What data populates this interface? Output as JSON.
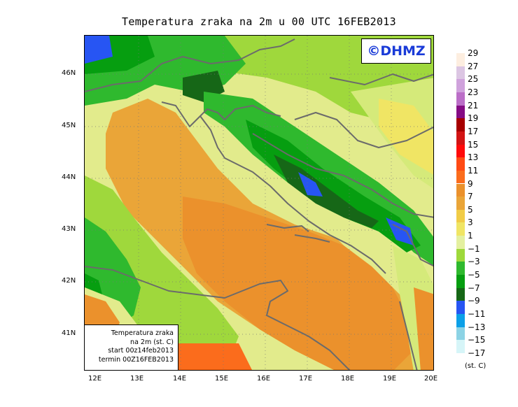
{
  "title": "Temperatura zraka na 2m u 00 UTC 16FEB2013",
  "logo": "©DHMZ",
  "info_box": {
    "line1": "Temperatura zraka",
    "line2": "na 2m (st. C)",
    "line3": "start 00z14feb2013",
    "line4": "termin 00Z16FEB2013"
  },
  "lat_labels": [
    "46N",
    "45N",
    "44N",
    "43N",
    "42N",
    "41N"
  ],
  "lon_labels": [
    "12E",
    "13E",
    "14E",
    "15E",
    "16E",
    "17E",
    "18E",
    "19E",
    "20E"
  ],
  "legend": {
    "levels": [
      "29",
      "27",
      "25",
      "23",
      "21",
      "19",
      "17",
      "15",
      "13",
      "11",
      "9",
      "7",
      "5",
      "3",
      "1",
      "−1",
      "−3",
      "−5",
      "−7",
      "−9",
      "−11",
      "−13",
      "−15",
      "−17"
    ],
    "unit": "(st. C)",
    "colors": [
      "#fdeee0",
      "#dcc6e3",
      "#cfa2dc",
      "#bb6ec8",
      "#850c84",
      "#a70000",
      "#d21414",
      "#ff0a0a",
      "#ff4a14",
      "#fb6c1c",
      "#eb912c",
      "#eaa538",
      "#f1cc47",
      "#f0e564",
      "#e4f0a0",
      "#9ed93b",
      "#2fb92e",
      "#069e10",
      "#166717",
      "#2755f3",
      "#0ba0e8",
      "#8cd3e5",
      "#d6f5f8",
      "#ffffff"
    ]
  }
}
